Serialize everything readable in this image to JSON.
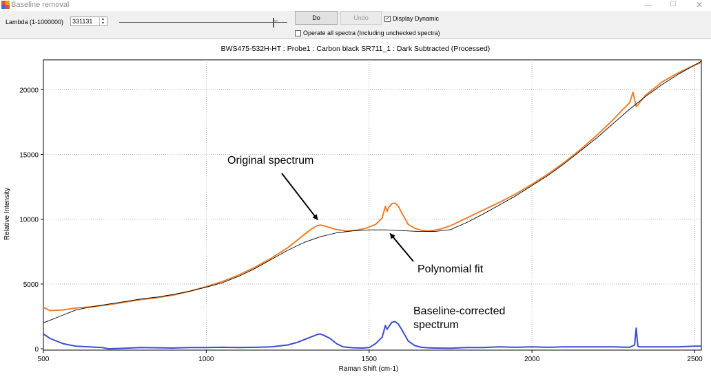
{
  "window": {
    "title": "Baseline removal",
    "controls": {
      "minimize": "—",
      "maximize": "☐",
      "close": "✕"
    }
  },
  "toolbar": {
    "lambda_label": "Lambda (1-1000000)",
    "lambda_value": "331131",
    "do_label": "Do",
    "undo_label": "Undo",
    "display_dynamic_label": "Display Dynamic",
    "display_dynamic_checked": true,
    "operate_all_label": "Operate all spectra (Including unchecked spectra)",
    "operate_all_checked": false
  },
  "chart_data": {
    "type": "line",
    "title": "BWS475-532H-HT : Probe1 : Carbon black SR711_1 : Dark Subtracted (Processed)",
    "xlabel": "Raman Shift (cm-1)",
    "ylabel": "Relative Intensity",
    "xlim": [
      500,
      2520
    ],
    "ylim": [
      -100,
      22300
    ],
    "xticks": [
      500,
      1000,
      1500,
      2000,
      2500
    ],
    "yticks": [
      0,
      5000,
      10000,
      15000,
      20000
    ],
    "grid": true,
    "series": [
      {
        "color": "#f07f2a",
        "x": [
          500,
          520,
          560,
          600,
          650,
          700,
          750,
          800,
          850,
          900,
          950,
          1000,
          1050,
          1100,
          1150,
          1200,
          1250,
          1300,
          1320,
          1340,
          1350,
          1360,
          1380,
          1400,
          1430,
          1460,
          1490,
          1520,
          1540,
          1550,
          1555,
          1560,
          1570,
          1580,
          1590,
          1600,
          1620,
          1640,
          1660,
          1680,
          1700,
          1720,
          1750,
          1800,
          1850,
          1900,
          1950,
          2000,
          2050,
          2100,
          2150,
          2200,
          2250,
          2280,
          2300,
          2310,
          2320,
          2325,
          2330,
          2350,
          2400,
          2450,
          2500,
          2520
        ],
        "y": [
          3200,
          2950,
          3000,
          3150,
          3250,
          3400,
          3600,
          3800,
          3950,
          4150,
          4450,
          4800,
          5200,
          5700,
          6300,
          7000,
          7800,
          8800,
          9200,
          9500,
          9550,
          9500,
          9350,
          9200,
          9100,
          9150,
          9300,
          9600,
          10100,
          11000,
          10600,
          10900,
          11200,
          11250,
          11000,
          10500,
          9600,
          9300,
          9150,
          9100,
          9150,
          9250,
          9500,
          10100,
          10700,
          11300,
          11950,
          12700,
          13500,
          14400,
          15400,
          16500,
          17700,
          18500,
          19000,
          19800,
          18700,
          18800,
          19000,
          19600,
          20600,
          21300,
          21900,
          22100
        ]
      },
      {
        "color": "#000000",
        "x": [
          500,
          550,
          600,
          650,
          700,
          750,
          800,
          850,
          900,
          950,
          1000,
          1050,
          1100,
          1150,
          1200,
          1250,
          1300,
          1350,
          1400,
          1450,
          1500,
          1550,
          1600,
          1650,
          1700,
          1750,
          1800,
          1850,
          1900,
          1950,
          2000,
          2050,
          2100,
          2150,
          2200,
          2250,
          2300,
          2350,
          2400,
          2450,
          2500,
          2520
        ],
        "y": [
          2000,
          2500,
          3000,
          3250,
          3450,
          3650,
          3850,
          4000,
          4200,
          4450,
          4750,
          5100,
          5600,
          6200,
          6900,
          7600,
          8200,
          8650,
          8950,
          9100,
          9180,
          9180,
          9120,
          9060,
          9050,
          9200,
          9750,
          10400,
          11100,
          11800,
          12600,
          13400,
          14300,
          15300,
          16300,
          17400,
          18500,
          19500,
          20400,
          21200,
          21900,
          22200
        ]
      },
      {
        "color": "#3a4bd6",
        "x": [
          500,
          520,
          560,
          600,
          640,
          680,
          700,
          750,
          800,
          850,
          900,
          950,
          1000,
          1050,
          1100,
          1150,
          1200,
          1250,
          1280,
          1300,
          1320,
          1340,
          1350,
          1360,
          1380,
          1400,
          1420,
          1450,
          1480,
          1500,
          1520,
          1540,
          1550,
          1555,
          1560,
          1570,
          1580,
          1590,
          1600,
          1620,
          1640,
          1660,
          1680,
          1700,
          1750,
          1800,
          1850,
          1900,
          1950,
          2000,
          2050,
          2100,
          2150,
          2200,
          2250,
          2300,
          2315,
          2320,
          2325,
          2330,
          2350,
          2400,
          2450,
          2500,
          2520
        ],
        "y": [
          1150,
          800,
          400,
          200,
          150,
          100,
          0,
          50,
          100,
          80,
          60,
          100,
          100,
          120,
          100,
          120,
          150,
          300,
          500,
          700,
          900,
          1100,
          1150,
          1050,
          800,
          400,
          150,
          80,
          60,
          100,
          400,
          900,
          1800,
          1500,
          1700,
          2050,
          2100,
          1900,
          1500,
          600,
          250,
          120,
          80,
          60,
          50,
          100,
          100,
          150,
          120,
          150,
          120,
          150,
          150,
          150,
          150,
          120,
          300,
          1600,
          200,
          150,
          150,
          150,
          150,
          200,
          200
        ]
      }
    ],
    "annotations": [
      {
        "text": "Original spectrum",
        "arrow_to": [
          1350,
          9550
        ]
      },
      {
        "text": "Polynomial fit",
        "arrow_to": [
          1590,
          9100
        ]
      },
      {
        "text": "Baseline-corrected",
        "text2": "spectrum"
      }
    ]
  }
}
